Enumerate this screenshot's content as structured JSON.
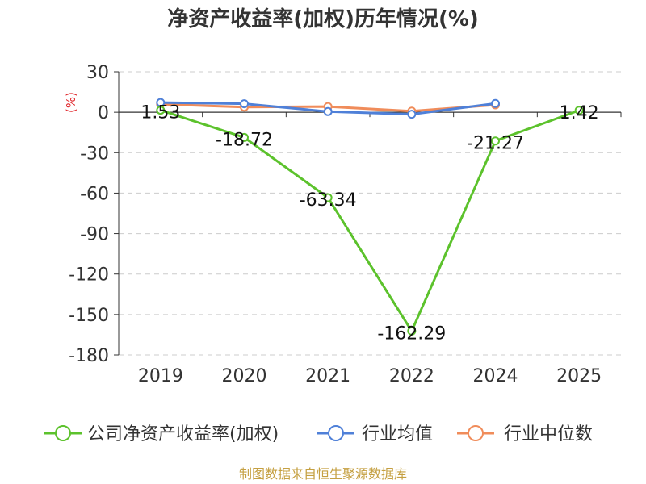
{
  "chart_data": {
    "type": "line",
    "title": "净资产收益率(加权)历年情况(%)",
    "y_unit": "(%)",
    "categories": [
      "2019",
      "2020",
      "2021",
      "2022",
      "2024",
      "2025"
    ],
    "ylim": [
      -180,
      30
    ],
    "yticks": [
      30,
      0,
      -30,
      -60,
      -90,
      -120,
      -150,
      -180
    ],
    "grid": true,
    "legend_position": "bottom",
    "series": [
      {
        "name": "公司净资产收益率(加权)",
        "color": "#5cc22c",
        "values": [
          1.53,
          -18.72,
          -63.34,
          -162.29,
          -21.27,
          1.42
        ],
        "labels": [
          "1.53",
          "-18.72",
          "-63.34",
          "-162.29",
          "-21.27",
          "1.42"
        ]
      },
      {
        "name": "行业均值",
        "color": "#4f80d8",
        "values": [
          7.2,
          6.3,
          0.5,
          -1.5,
          6.5,
          null
        ]
      },
      {
        "name": "行业中位数",
        "color": "#f08c5a",
        "values": [
          6.0,
          3.8,
          4.2,
          0.8,
          5.5,
          null
        ]
      }
    ]
  },
  "source": "制图数据来自恒生聚源数据库"
}
